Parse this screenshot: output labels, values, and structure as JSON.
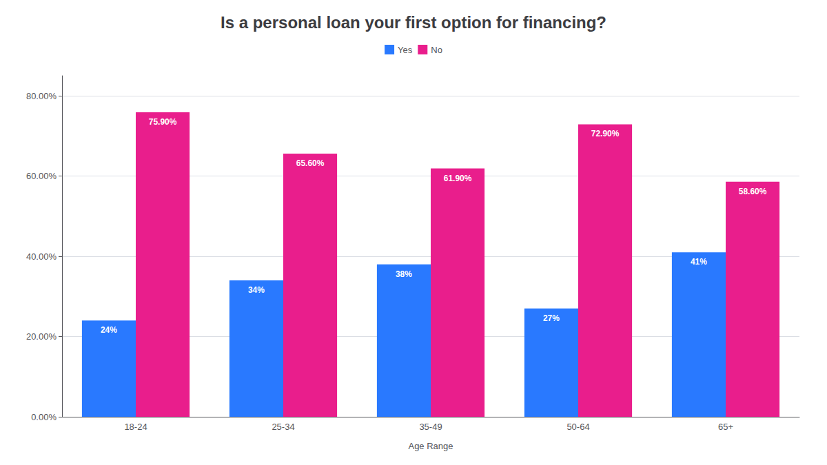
{
  "chart_data": {
    "type": "bar",
    "title": "Is a personal loan your first option for financing?",
    "xlabel": "Age Range",
    "categories": [
      "18-24",
      "25-34",
      "35-49",
      "50-64",
      "65+"
    ],
    "series": [
      {
        "name": "Yes",
        "color": "#2979FF",
        "values": [
          24,
          34,
          38,
          27,
          41
        ],
        "value_labels": [
          "24%",
          "34%",
          "38%",
          "27%",
          "41%"
        ]
      },
      {
        "name": "No",
        "color": "#E91E8C",
        "values": [
          75.9,
          65.6,
          61.9,
          72.9,
          58.6
        ],
        "value_labels": [
          "75.90%",
          "65.60%",
          "61.90%",
          "72.90%",
          "58.60%"
        ]
      }
    ],
    "ylim": [
      0,
      85
    ],
    "yticks": [
      {
        "value": 0,
        "label": "0.00%"
      },
      {
        "value": 20,
        "label": "20.00%"
      },
      {
        "value": 40,
        "label": "40.00%"
      },
      {
        "value": 60,
        "label": "60.00%"
      },
      {
        "value": 80,
        "label": "80.00%"
      }
    ],
    "grid": true,
    "legend": "top",
    "data_labels": true
  }
}
